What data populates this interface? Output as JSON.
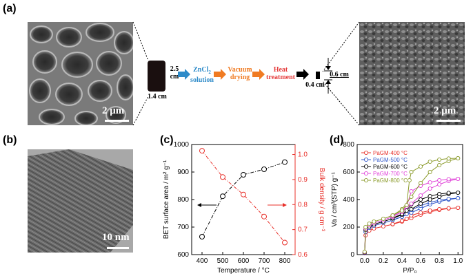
{
  "panels": {
    "a": "(a)",
    "b": "(b)",
    "c": "(c)",
    "d": "(d)"
  },
  "sem_left": {
    "scale": "2 μm"
  },
  "sem_right": {
    "scale": "2 μm"
  },
  "tem": {
    "scale": "10 nm"
  },
  "schematic": {
    "sample_height": "2.5 cm",
    "sample_width": "1.4 cm",
    "step1_line1": "ZnCl",
    "step1_sub": "2",
    "step1_line2": "solution",
    "step2_line1": "Vacuum",
    "step2_line2": "drying",
    "step3_line1": "Heat",
    "step3_line2": "treatment",
    "product_height": "0.6 cm",
    "product_width": "0.4 cm",
    "colors": {
      "zncl2": "#2e8bc9",
      "vacuum": "#f07b22",
      "heat": "#e53b3b",
      "arrow_black": "#000000"
    }
  },
  "chart_data": [
    {
      "type": "line",
      "panel": "c",
      "xlabel": "Temperature / °C",
      "ylabel_left": "BET surface area / m² g⁻¹",
      "ylabel_right": "Bulk density / g cm⁻³",
      "x_ticks": [
        "400",
        "500",
        "600",
        "700",
        "800"
      ],
      "y_left_ticks": [
        "600",
        "700",
        "800",
        "900",
        "1000"
      ],
      "y_right_ticks": [
        "0.6",
        "0.7",
        "0.8",
        "0.9",
        "1.0"
      ],
      "xlim": [
        350,
        850
      ],
      "ylim_left": [
        600,
        1000
      ],
      "ylim_right": [
        0.6,
        1.04
      ],
      "series": [
        {
          "axis": "left",
          "color": "#000000",
          "marker": "open-circle",
          "x": [
            400,
            500,
            600,
            700,
            800
          ],
          "y": [
            665,
            812,
            890,
            910,
            936
          ]
        },
        {
          "axis": "right",
          "color": "#e8302a",
          "marker": "open-circle",
          "x": [
            400,
            500,
            600,
            700,
            800
          ],
          "y": [
            1.015,
            0.91,
            0.84,
            0.752,
            0.648
          ]
        }
      ]
    },
    {
      "type": "line",
      "panel": "d",
      "xlabel": "P/P₀",
      "ylabel": "Va / cm³(STP) g⁻¹",
      "x_ticks": [
        "0.0",
        "0.2",
        "0.4",
        "0.6",
        "0.8",
        "1.0"
      ],
      "y_ticks": [
        "0",
        "200",
        "400",
        "600",
        "800"
      ],
      "xlim": [
        -0.08,
        1.05
      ],
      "ylim": [
        0,
        800
      ],
      "legend_placement": "top-left",
      "series": [
        {
          "name": "PaGM-400 °C",
          "color": "#e8302a",
          "x": [
            0.0,
            0.01,
            0.05,
            0.1,
            0.2,
            0.3,
            0.4,
            0.5,
            0.6,
            0.7,
            0.8,
            0.9,
            1.0
          ],
          "y": [
            10,
            140,
            175,
            190,
            205,
            220,
            240,
            265,
            290,
            310,
            325,
            335,
            340
          ],
          "x_des": [
            1.0,
            0.9,
            0.8,
            0.7,
            0.6,
            0.5,
            0.45,
            0.4,
            0.3
          ],
          "y_des": [
            340,
            337,
            330,
            320,
            305,
            285,
            260,
            245,
            222
          ]
        },
        {
          "name": "PaGM-500 °C",
          "color": "#2f55c8",
          "x": [
            0.0,
            0.01,
            0.05,
            0.1,
            0.2,
            0.3,
            0.4,
            0.5,
            0.6,
            0.7,
            0.8,
            0.9,
            1.0
          ],
          "y": [
            12,
            165,
            195,
            210,
            230,
            250,
            275,
            305,
            335,
            365,
            385,
            400,
            410
          ],
          "x_des": [
            1.0,
            0.9,
            0.8,
            0.7,
            0.6,
            0.5,
            0.45,
            0.4,
            0.3
          ],
          "y_des": [
            410,
            405,
            395,
            380,
            355,
            325,
            295,
            275,
            252
          ]
        },
        {
          "name": "PaGM-600 °C",
          "color": "#000000",
          "x": [
            0.0,
            0.01,
            0.05,
            0.1,
            0.2,
            0.3,
            0.4,
            0.5,
            0.6,
            0.7,
            0.8,
            0.9,
            1.0
          ],
          "y": [
            15,
            180,
            205,
            220,
            240,
            262,
            290,
            330,
            370,
            400,
            420,
            440,
            450
          ],
          "x_des": [
            1.0,
            0.9,
            0.8,
            0.7,
            0.6,
            0.5,
            0.45,
            0.4,
            0.3
          ],
          "y_des": [
            450,
            448,
            440,
            425,
            400,
            365,
            320,
            295,
            265
          ]
        },
        {
          "name": "PaGM-700 °C",
          "color": "#e040d8",
          "x": [
            0.0,
            0.01,
            0.05,
            0.1,
            0.2,
            0.3,
            0.4,
            0.5,
            0.6,
            0.7,
            0.8,
            0.9,
            1.0
          ],
          "y": [
            18,
            190,
            215,
            230,
            250,
            275,
            310,
            370,
            430,
            480,
            510,
            535,
            550
          ],
          "x_des": [
            1.0,
            0.9,
            0.8,
            0.7,
            0.6,
            0.5,
            0.45,
            0.4,
            0.3
          ],
          "y_des": [
            550,
            548,
            540,
            525,
            500,
            460,
            350,
            310,
            280
          ]
        },
        {
          "name": "PaGM-800 °C",
          "color": "#8a9a2a",
          "x": [
            0.0,
            0.01,
            0.05,
            0.1,
            0.2,
            0.3,
            0.4,
            0.5,
            0.6,
            0.7,
            0.8,
            0.9,
            1.0
          ],
          "y": [
            20,
            200,
            225,
            240,
            260,
            285,
            330,
            420,
            520,
            600,
            650,
            680,
            700
          ],
          "x_des": [
            1.0,
            0.9,
            0.8,
            0.7,
            0.6,
            0.5,
            0.48,
            0.45,
            0.4,
            0.3
          ],
          "y_des": [
            700,
            698,
            690,
            675,
            640,
            600,
            540,
            360,
            320,
            285
          ]
        }
      ]
    }
  ]
}
